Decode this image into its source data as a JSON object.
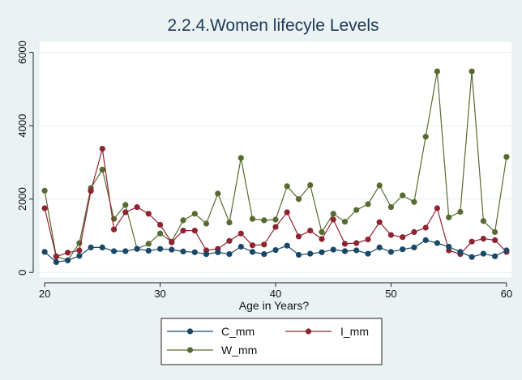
{
  "chart_data": {
    "type": "line",
    "title": "2.2.4.Women lifecyle Levels",
    "xlabel": "Age in Years?",
    "ylabel": "",
    "x": [
      20,
      21,
      22,
      23,
      24,
      25,
      26,
      27,
      28,
      29,
      30,
      31,
      32,
      33,
      34,
      35,
      36,
      37,
      38,
      39,
      40,
      41,
      42,
      43,
      44,
      45,
      46,
      47,
      48,
      49,
      50,
      51,
      52,
      53,
      54,
      55,
      56,
      57,
      58,
      59,
      60
    ],
    "xlim": [
      19.5,
      60.5
    ],
    "ylim": [
      -150,
      6300
    ],
    "xticks": [
      "20",
      "30",
      "40",
      "50",
      "60"
    ],
    "yticks": [
      "0",
      "2000",
      "4000",
      "6000"
    ],
    "grid": "horizontal",
    "legend_position": "bottom",
    "series": [
      {
        "name": "C_mm",
        "color": "#1a4766",
        "values": [
          560,
          280,
          330,
          450,
          680,
          680,
          580,
          580,
          640,
          590,
          640,
          620,
          570,
          550,
          500,
          550,
          500,
          700,
          560,
          500,
          610,
          730,
          480,
          510,
          550,
          620,
          580,
          600,
          510,
          680,
          560,
          630,
          680,
          880,
          800,
          700,
          560,
          420,
          510,
          440,
          600
        ]
      },
      {
        "name": "I_mm",
        "color": "#8e2430",
        "values": [
          1750,
          430,
          540,
          600,
          2220,
          3370,
          1170,
          1640,
          1780,
          1600,
          1300,
          820,
          1140,
          1140,
          600,
          640,
          860,
          1060,
          740,
          760,
          1240,
          1640,
          980,
          1140,
          910,
          1440,
          780,
          800,
          900,
          1370,
          1020,
          960,
          1100,
          1220,
          1750,
          600,
          500,
          840,
          920,
          880,
          560
        ]
      },
      {
        "name": "W_mm",
        "color": "#556b2f",
        "values": [
          2230,
          440,
          330,
          800,
          2300,
          2800,
          1460,
          1840,
          640,
          780,
          1060,
          840,
          1420,
          1600,
          1330,
          2150,
          1360,
          3120,
          1460,
          1420,
          1440,
          2350,
          2000,
          2380,
          1100,
          1600,
          1380,
          1700,
          1860,
          2370,
          1780,
          2100,
          1920,
          3700,
          5480,
          1500,
          1650,
          5480,
          1400,
          1100,
          3150
        ]
      }
    ]
  }
}
